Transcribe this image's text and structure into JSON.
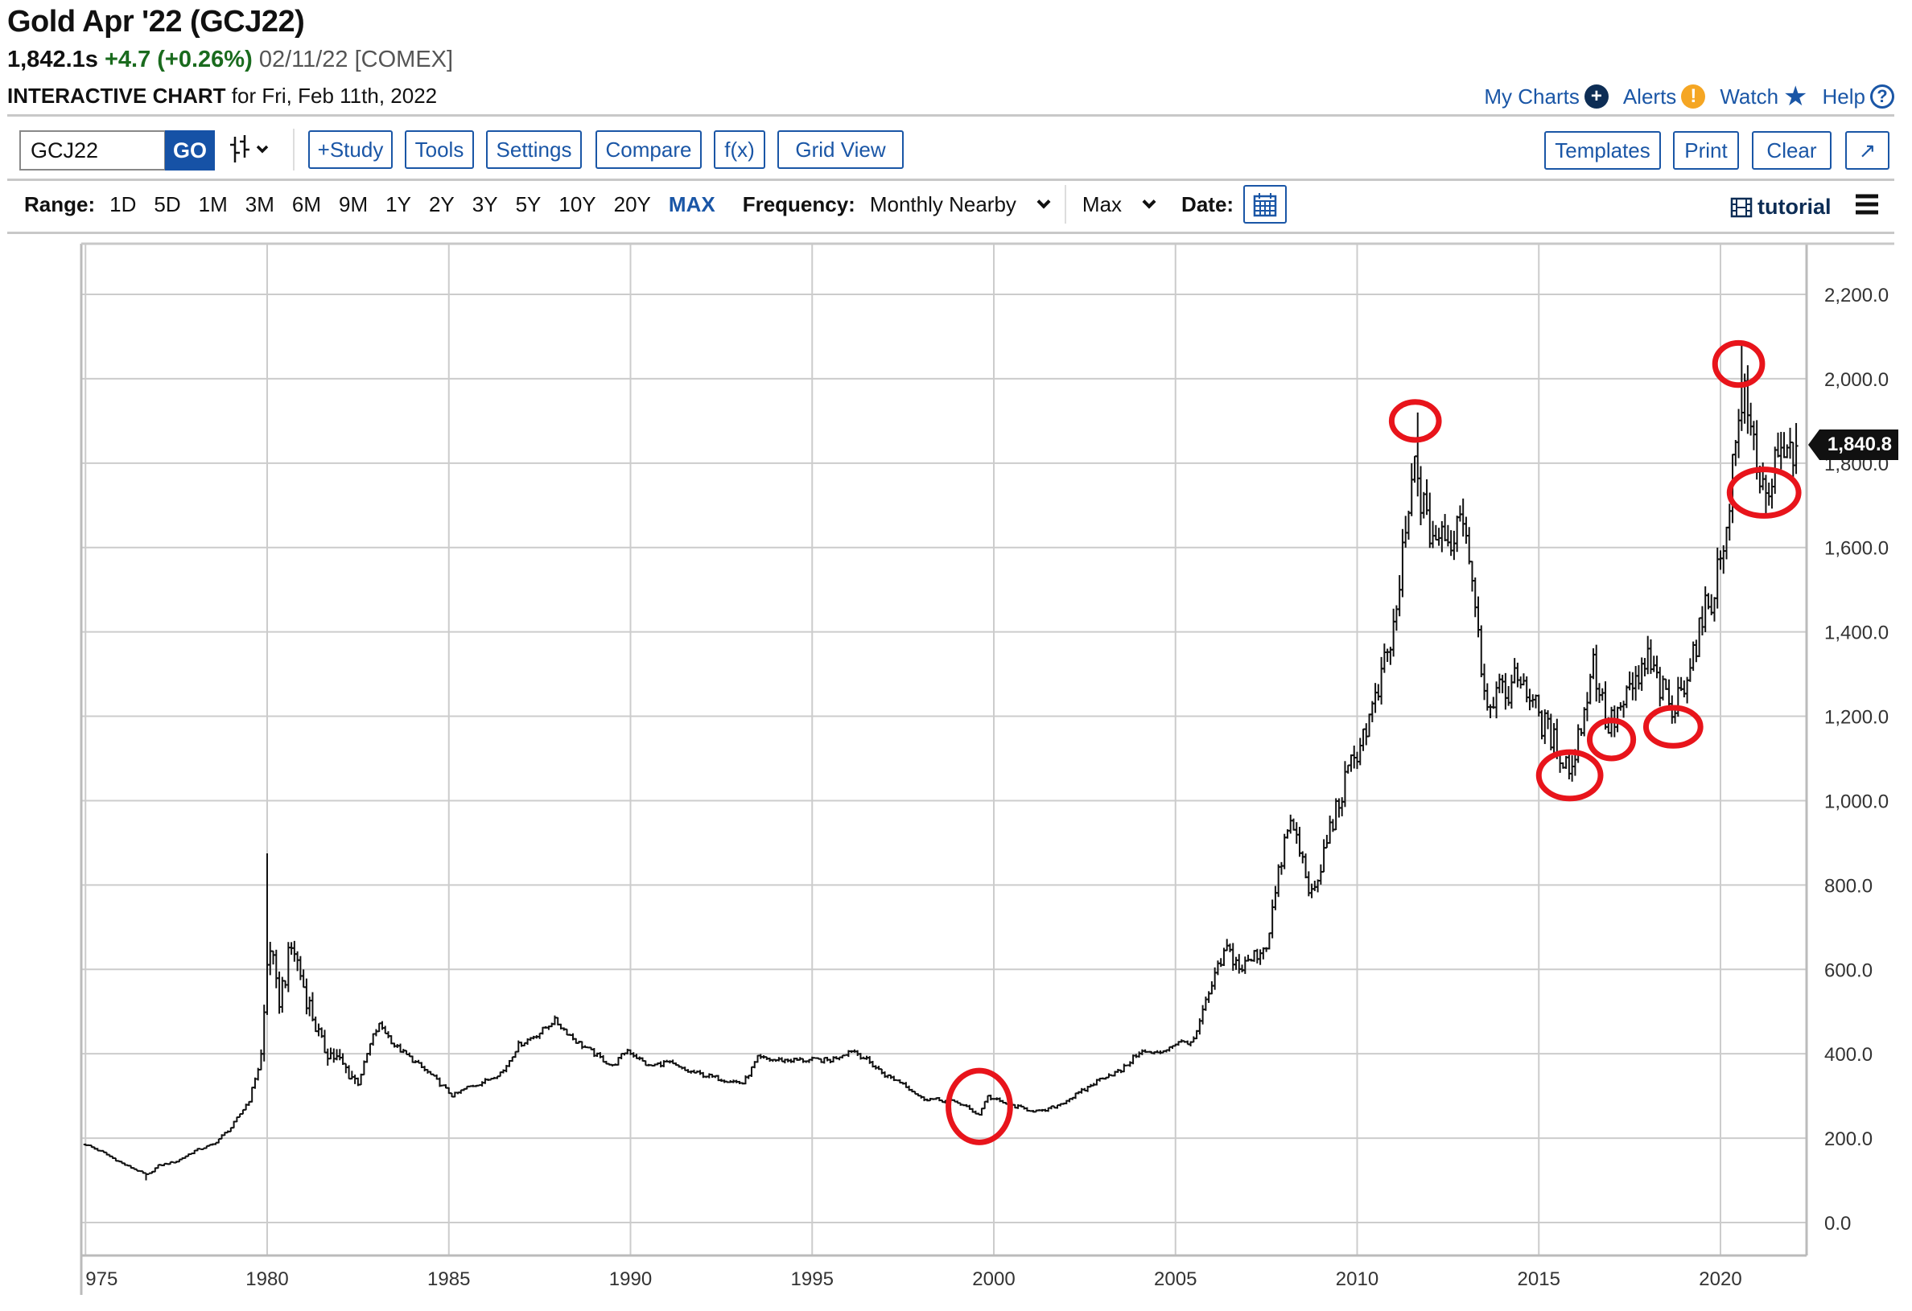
{
  "header": {
    "title": "Gold Apr '22 (GCJ22)",
    "last": "1,842.1s",
    "change": "+4.7 (+0.26%)",
    "meta": "02/11/22 [COMEX]",
    "subtitle_bold": "INTERACTIVE CHART",
    "subtitle_rest": "for Fri, Feb 11th, 2022"
  },
  "toplinks": {
    "my_charts": "My Charts",
    "alerts": "Alerts",
    "watch": "Watch",
    "help": "Help"
  },
  "colors": {
    "accent": "#1a56a6",
    "positive": "#1a6b1e",
    "alert": "#f5a623",
    "annotation": "#e8141b",
    "grid": "#cccccc"
  },
  "toolbar": {
    "symbol": "GCJ22",
    "go": "GO",
    "study": "+Study",
    "tools": "Tools",
    "settings": "Settings",
    "compare": "Compare",
    "fx": "f(x)",
    "grid_view": "Grid View",
    "templates": "Templates",
    "print": "Print",
    "clear": "Clear",
    "expand": "↗"
  },
  "range": {
    "label": "Range:",
    "options": [
      "1D",
      "5D",
      "1M",
      "3M",
      "6M",
      "9M",
      "1Y",
      "2Y",
      "3Y",
      "5Y",
      "10Y",
      "20Y",
      "MAX"
    ],
    "active": "MAX",
    "frequency_label": "Frequency:",
    "frequency": "Monthly Nearby",
    "period": "Max",
    "date_label": "Date:",
    "tutorial": "tutorial"
  },
  "chart_data": {
    "type": "ohlc",
    "frequency": "monthly",
    "xlim": [
      1974.9,
      2022.4
    ],
    "ylim": [
      -60,
      2340
    ],
    "x_ticks": [
      "975",
      "1980",
      "1985",
      "1990",
      "1995",
      "2000",
      "2005",
      "2010",
      "2015",
      "2020"
    ],
    "x_tick_values": [
      1975,
      1980,
      1985,
      1990,
      1995,
      2000,
      2005,
      2010,
      2015,
      2020
    ],
    "y_ticks": [
      "0.0",
      "200.0",
      "400.0",
      "600.0",
      "800.0",
      "1,000.0",
      "1,200.0",
      "1,400.0",
      "1,600.0",
      "1,800.0",
      "2,000.0",
      "2,200.0"
    ],
    "y_tick_values": [
      0,
      200,
      400,
      600,
      800,
      1000,
      1200,
      1400,
      1600,
      1800,
      2000,
      2200
    ],
    "last_price_label": "1,840.8",
    "last_price": 1840.8,
    "close_anchors": [
      [
        1975.0,
        185
      ],
      [
        1975.5,
        165
      ],
      [
        1976.0,
        140
      ],
      [
        1976.7,
        112
      ],
      [
        1977.0,
        135
      ],
      [
        1977.5,
        145
      ],
      [
        1978.0,
        170
      ],
      [
        1978.5,
        185
      ],
      [
        1979.0,
        225
      ],
      [
        1979.5,
        290
      ],
      [
        1979.85,
        400
      ],
      [
        1980.05,
        680
      ],
      [
        1980.3,
        520
      ],
      [
        1980.7,
        660
      ],
      [
        1981.0,
        560
      ],
      [
        1981.5,
        420
      ],
      [
        1982.0,
        380
      ],
      [
        1982.5,
        330
      ],
      [
        1982.9,
        440
      ],
      [
        1983.1,
        470
      ],
      [
        1983.5,
        420
      ],
      [
        1984.0,
        385
      ],
      [
        1984.5,
        350
      ],
      [
        1985.1,
        300
      ],
      [
        1985.5,
        320
      ],
      [
        1986.0,
        335
      ],
      [
        1986.5,
        360
      ],
      [
        1986.9,
        420
      ],
      [
        1987.5,
        450
      ],
      [
        1987.9,
        480
      ],
      [
        1988.5,
        430
      ],
      [
        1989.0,
        400
      ],
      [
        1989.5,
        370
      ],
      [
        1989.9,
        410
      ],
      [
        1990.5,
        370
      ],
      [
        1991.0,
        380
      ],
      [
        1991.5,
        360
      ],
      [
        1992.0,
        350
      ],
      [
        1992.5,
        340
      ],
      [
        1993.1,
        330
      ],
      [
        1993.5,
        390
      ],
      [
        1994.0,
        385
      ],
      [
        1995.0,
        385
      ],
      [
        1995.5,
        385
      ],
      [
        1996.1,
        410
      ],
      [
        1996.5,
        385
      ],
      [
        1997.0,
        350
      ],
      [
        1997.5,
        330
      ],
      [
        1998.0,
        295
      ],
      [
        1998.5,
        290
      ],
      [
        1999.0,
        285
      ],
      [
        1999.6,
        255
      ],
      [
        1999.8,
        300
      ],
      [
        2000.2,
        285
      ],
      [
        2000.8,
        270
      ],
      [
        2001.3,
        262
      ],
      [
        2001.8,
        280
      ],
      [
        2002.5,
        315
      ],
      [
        2003.0,
        345
      ],
      [
        2003.5,
        360
      ],
      [
        2004.0,
        405
      ],
      [
        2004.5,
        400
      ],
      [
        2005.0,
        425
      ],
      [
        2005.5,
        430
      ],
      [
        2006.0,
        560
      ],
      [
        2006.4,
        650
      ],
      [
        2006.8,
        600
      ],
      [
        2007.5,
        660
      ],
      [
        2008.0,
        900
      ],
      [
        2008.2,
        950
      ],
      [
        2008.8,
        760
      ],
      [
        2009.2,
        920
      ],
      [
        2009.9,
        1100
      ],
      [
        2010.5,
        1230
      ],
      [
        2011.0,
        1400
      ],
      [
        2011.6,
        1800
      ],
      [
        2011.9,
        1650
      ],
      [
        2012.5,
        1600
      ],
      [
        2012.9,
        1700
      ],
      [
        2013.3,
        1450
      ],
      [
        2013.5,
        1250
      ],
      [
        2014.0,
        1250
      ],
      [
        2014.5,
        1300
      ],
      [
        2015.0,
        1200
      ],
      [
        2015.9,
        1070
      ],
      [
        2016.5,
        1330
      ],
      [
        2016.9,
        1170
      ],
      [
        2017.5,
        1250
      ],
      [
        2018.0,
        1330
      ],
      [
        2018.7,
        1200
      ],
      [
        2019.0,
        1290
      ],
      [
        2019.5,
        1420
      ],
      [
        2020.0,
        1560
      ],
      [
        2020.6,
        1970
      ],
      [
        2021.2,
        1730
      ],
      [
        2021.5,
        1780
      ],
      [
        2022.1,
        1840
      ]
    ],
    "extremes": [
      {
        "x": 1976.67,
        "low": 100
      },
      {
        "x": 1980.0,
        "high": 875
      },
      {
        "x": 2011.67,
        "high": 1920
      },
      {
        "x": 2020.58,
        "high": 2089
      },
      {
        "x": 2015.92,
        "low": 1045
      },
      {
        "x": 2021.25,
        "low": 1677
      }
    ],
    "annotations": [
      {
        "type": "ellipse",
        "x": 1999.6,
        "y": 275,
        "rx_years": 0.85,
        "ry_price": 85
      },
      {
        "type": "ellipse",
        "x": 2011.6,
        "y": 1900,
        "rx_years": 0.65,
        "ry_price": 45
      },
      {
        "type": "ellipse",
        "x": 2015.85,
        "y": 1060,
        "rx_years": 0.85,
        "ry_price": 55
      },
      {
        "type": "ellipse",
        "x": 2017.0,
        "y": 1145,
        "rx_years": 0.6,
        "ry_price": 45
      },
      {
        "type": "ellipse",
        "x": 2018.7,
        "y": 1175,
        "rx_years": 0.75,
        "ry_price": 45
      },
      {
        "type": "ellipse",
        "x": 2020.5,
        "y": 2035,
        "rx_years": 0.65,
        "ry_price": 50
      },
      {
        "type": "ellipse",
        "x": 2021.2,
        "y": 1730,
        "rx_years": 0.95,
        "ry_price": 55
      }
    ]
  }
}
